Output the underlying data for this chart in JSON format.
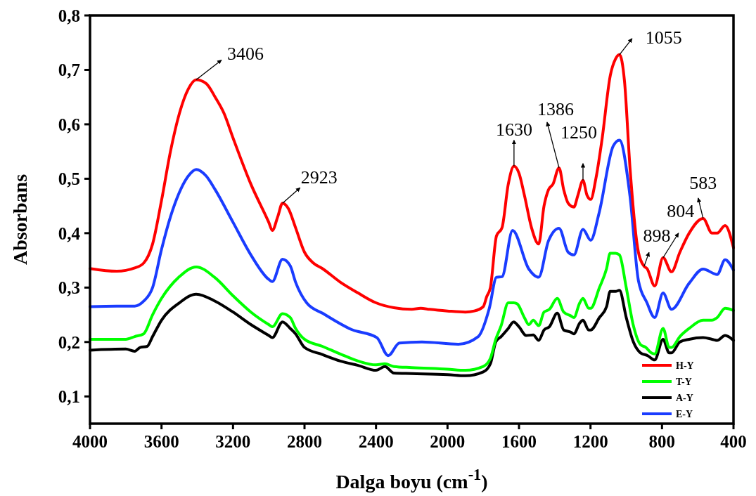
{
  "chart_data": {
    "type": "line",
    "xlabel": "Dalga boyu (cm$^{-1}$)",
    "ylabel": "Absorbans",
    "xlim": [
      4000,
      400
    ],
    "xticks": [
      4000,
      3600,
      3200,
      2800,
      2400,
      2000,
      1600,
      1200,
      800,
      400
    ],
    "ylim": [
      0.05,
      0.8
    ],
    "yticks": [
      {
        "value": 0.1,
        "label": "0,1"
      },
      {
        "value": 0.2,
        "label": "0,2"
      },
      {
        "value": 0.3,
        "label": "0,3"
      },
      {
        "value": 0.4,
        "label": "0,4"
      },
      {
        "value": 0.5,
        "label": "0,5"
      },
      {
        "value": 0.6,
        "label": "0,6"
      },
      {
        "value": 0.7,
        "label": "0,7"
      },
      {
        "value": 0.8,
        "label": "0,8"
      }
    ],
    "grid": false,
    "legend": "bottom right",
    "marker": "none",
    "line_style": "solid",
    "series": [
      {
        "name": "H-Y",
        "color": "#ff0000",
        "x": [
          4000,
          3850,
          3750,
          3700,
          3650,
          3600,
          3550,
          3500,
          3450,
          3406,
          3350,
          3300,
          3250,
          3200,
          3100,
          3000,
          2980,
          2950,
          2923,
          2890,
          2850,
          2800,
          2750,
          2700,
          2600,
          2500,
          2400,
          2300,
          2200,
          2150,
          2100,
          2000,
          1900,
          1850,
          1800,
          1781,
          1760,
          1726,
          1695,
          1660,
          1628,
          1600,
          1570,
          1530,
          1490,
          1460,
          1435,
          1410,
          1376,
          1350,
          1325,
          1293,
          1270,
          1242,
          1220,
          1199,
          1170,
          1136,
          1089,
          1060,
          1038,
          1010,
          979,
          932,
          900,
          884,
          841,
          794,
          747,
          700,
          648,
          570,
          520,
          491,
          447,
          400
        ],
        "values": [
          0.335,
          0.33,
          0.336,
          0.345,
          0.38,
          0.46,
          0.55,
          0.62,
          0.665,
          0.682,
          0.675,
          0.65,
          0.62,
          0.575,
          0.49,
          0.42,
          0.405,
          0.43,
          0.455,
          0.445,
          0.41,
          0.365,
          0.345,
          0.335,
          0.31,
          0.29,
          0.272,
          0.263,
          0.26,
          0.262,
          0.26,
          0.257,
          0.255,
          0.257,
          0.265,
          0.283,
          0.3,
          0.395,
          0.41,
          0.49,
          0.523,
          0.51,
          0.47,
          0.41,
          0.38,
          0.45,
          0.48,
          0.49,
          0.52,
          0.48,
          0.455,
          0.448,
          0.47,
          0.497,
          0.47,
          0.462,
          0.5,
          0.571,
          0.69,
          0.72,
          0.728,
          0.68,
          0.52,
          0.365,
          0.339,
          0.335,
          0.303,
          0.355,
          0.329,
          0.365,
          0.4,
          0.427,
          0.4,
          0.4,
          0.414,
          0.373
        ]
      },
      {
        "name": "T-Y",
        "color": "#00ff00",
        "x": [
          4000,
          3800,
          3750,
          3700,
          3650,
          3600,
          3500,
          3406,
          3300,
          3200,
          3100,
          3000,
          2980,
          2923,
          2880,
          2850,
          2800,
          2700,
          2600,
          2500,
          2400,
          2350,
          2300,
          2200,
          2000,
          1900,
          1800,
          1760,
          1730,
          1700,
          1660,
          1630,
          1610,
          1570,
          1545,
          1520,
          1490,
          1460,
          1430,
          1386,
          1350,
          1310,
          1293,
          1260,
          1242,
          1210,
          1199,
          1150,
          1110,
          1090,
          1060,
          1038,
          1000,
          960,
          920,
          890,
          860,
          841,
          794,
          760,
          747,
          700,
          648,
          570,
          520,
          491,
          447,
          400
        ],
        "values": [
          0.205,
          0.205,
          0.21,
          0.215,
          0.25,
          0.28,
          0.32,
          0.338,
          0.318,
          0.285,
          0.255,
          0.232,
          0.228,
          0.252,
          0.245,
          0.225,
          0.205,
          0.192,
          0.178,
          0.165,
          0.158,
          0.16,
          0.155,
          0.153,
          0.15,
          0.148,
          0.155,
          0.17,
          0.205,
          0.23,
          0.272,
          0.272,
          0.27,
          0.245,
          0.232,
          0.24,
          0.23,
          0.255,
          0.26,
          0.28,
          0.255,
          0.248,
          0.245,
          0.272,
          0.28,
          0.262,
          0.262,
          0.3,
          0.335,
          0.363,
          0.363,
          0.36,
          0.3,
          0.23,
          0.195,
          0.19,
          0.18,
          0.178,
          0.225,
          0.19,
          0.19,
          0.21,
          0.225,
          0.24,
          0.24,
          0.245,
          0.262,
          0.258
        ]
      },
      {
        "name": "A-Y",
        "color": "#000000",
        "x": [
          4000,
          3800,
          3750,
          3720,
          3680,
          3650,
          3600,
          3500,
          3406,
          3300,
          3200,
          3100,
          3000,
          2980,
          2923,
          2880,
          2850,
          2800,
          2700,
          2600,
          2500,
          2400,
          2350,
          2300,
          2200,
          2000,
          1900,
          1800,
          1760,
          1730,
          1700,
          1660,
          1630,
          1600,
          1560,
          1520,
          1490,
          1460,
          1430,
          1386,
          1350,
          1310,
          1293,
          1260,
          1242,
          1210,
          1199,
          1150,
          1110,
          1090,
          1060,
          1038,
          1000,
          960,
          920,
          880,
          841,
          794,
          760,
          747,
          700,
          648,
          570,
          520,
          491,
          447,
          400
        ],
        "values": [
          0.185,
          0.187,
          0.183,
          0.19,
          0.192,
          0.21,
          0.24,
          0.272,
          0.288,
          0.275,
          0.255,
          0.232,
          0.212,
          0.208,
          0.237,
          0.225,
          0.215,
          0.19,
          0.177,
          0.165,
          0.157,
          0.148,
          0.155,
          0.143,
          0.142,
          0.14,
          0.138,
          0.145,
          0.16,
          0.2,
          0.21,
          0.225,
          0.237,
          0.228,
          0.212,
          0.213,
          0.203,
          0.222,
          0.228,
          0.253,
          0.222,
          0.218,
          0.215,
          0.235,
          0.24,
          0.222,
          0.222,
          0.245,
          0.265,
          0.293,
          0.293,
          0.295,
          0.245,
          0.2,
          0.18,
          0.175,
          0.167,
          0.205,
          0.18,
          0.18,
          0.2,
          0.205,
          0.208,
          0.205,
          0.203,
          0.212,
          0.203
        ]
      },
      {
        "name": "E-Y",
        "color": "#1a3cff",
        "x": [
          4000,
          3850,
          3750,
          3700,
          3650,
          3600,
          3550,
          3500,
          3450,
          3406,
          3350,
          3300,
          3200,
          3100,
          3000,
          2980,
          2923,
          2880,
          2850,
          2788,
          2694,
          2537,
          2395,
          2332,
          2269,
          2143,
          1939,
          1828,
          1766,
          1726,
          1695,
          1636,
          1545,
          1490,
          1435,
          1376,
          1325,
          1293,
          1242,
          1199,
          1152,
          1073,
          1038,
          979,
          932,
          884,
          841,
          794,
          747,
          648,
          570,
          491,
          447,
          400
        ],
        "values": [
          0.265,
          0.266,
          0.266,
          0.275,
          0.3,
          0.37,
          0.43,
          0.475,
          0.505,
          0.517,
          0.505,
          0.48,
          0.42,
          0.36,
          0.315,
          0.311,
          0.352,
          0.34,
          0.31,
          0.272,
          0.252,
          0.223,
          0.208,
          0.175,
          0.198,
          0.2,
          0.196,
          0.21,
          0.262,
          0.319,
          0.32,
          0.405,
          0.334,
          0.319,
          0.386,
          0.409,
          0.365,
          0.36,
          0.407,
          0.387,
          0.437,
          0.56,
          0.571,
          0.468,
          0.313,
          0.272,
          0.245,
          0.29,
          0.26,
          0.308,
          0.334,
          0.324,
          0.351,
          0.332
        ]
      }
    ],
    "annotations": [
      {
        "text": "3406",
        "x": 3406,
        "y": 0.682
      },
      {
        "text": "2923",
        "x": 2923,
        "y": 0.455
      },
      {
        "text": "1630",
        "x": 1628,
        "y": 0.523
      },
      {
        "text": "1386",
        "x": 1376,
        "y": 0.52
      },
      {
        "text": "1250",
        "x": 1242,
        "y": 0.497
      },
      {
        "text": "1055",
        "x": 1038,
        "y": 0.728
      },
      {
        "text": "898",
        "x": 900,
        "y": 0.339
      },
      {
        "text": "804",
        "x": 794,
        "y": 0.355
      },
      {
        "text": "583",
        "x": 570,
        "y": 0.427
      }
    ]
  }
}
